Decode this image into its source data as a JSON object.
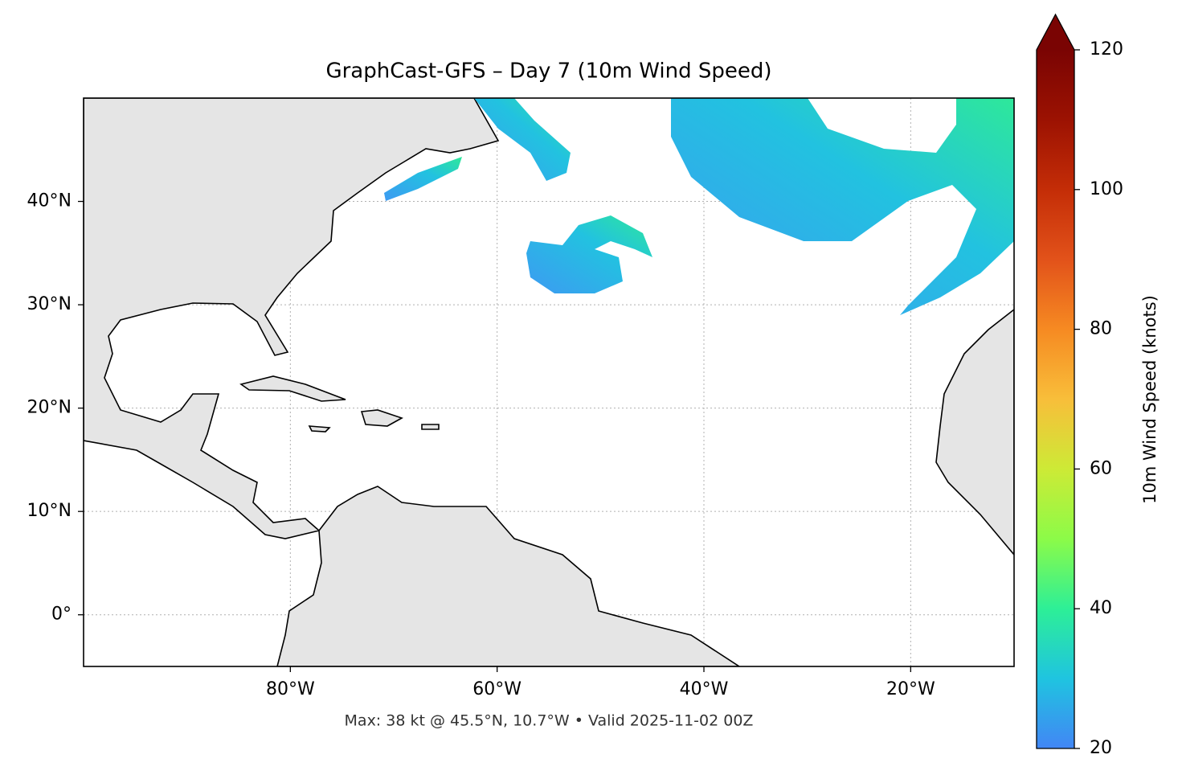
{
  "chart_data": {
    "type": "map",
    "title": "GraphCast-GFS – Day 7 (10m Wind Speed)",
    "footnote": "Max: 38 kt @ 45.5°N, 10.7°W • Valid 2025-11-02 00Z",
    "xlim": [
      -100,
      -10
    ],
    "ylim": [
      -5,
      50
    ],
    "xticks": [
      {
        "value": -80,
        "label": "80°W"
      },
      {
        "value": -60,
        "label": "60°W"
      },
      {
        "value": -40,
        "label": "40°W"
      },
      {
        "value": -20,
        "label": "20°W"
      }
    ],
    "yticks": [
      {
        "value": 0,
        "label": "0°"
      },
      {
        "value": 10,
        "label": "10°N"
      },
      {
        "value": 20,
        "label": "20°N"
      },
      {
        "value": 30,
        "label": "30°N"
      },
      {
        "value": 40,
        "label": "40°N"
      }
    ],
    "grid": true,
    "colorbar": {
      "label": "10m Wind Speed (knots)",
      "lim": [
        20,
        120
      ],
      "ticks": [
        20,
        40,
        60,
        80,
        100,
        120
      ],
      "extend": "max"
    }
  }
}
